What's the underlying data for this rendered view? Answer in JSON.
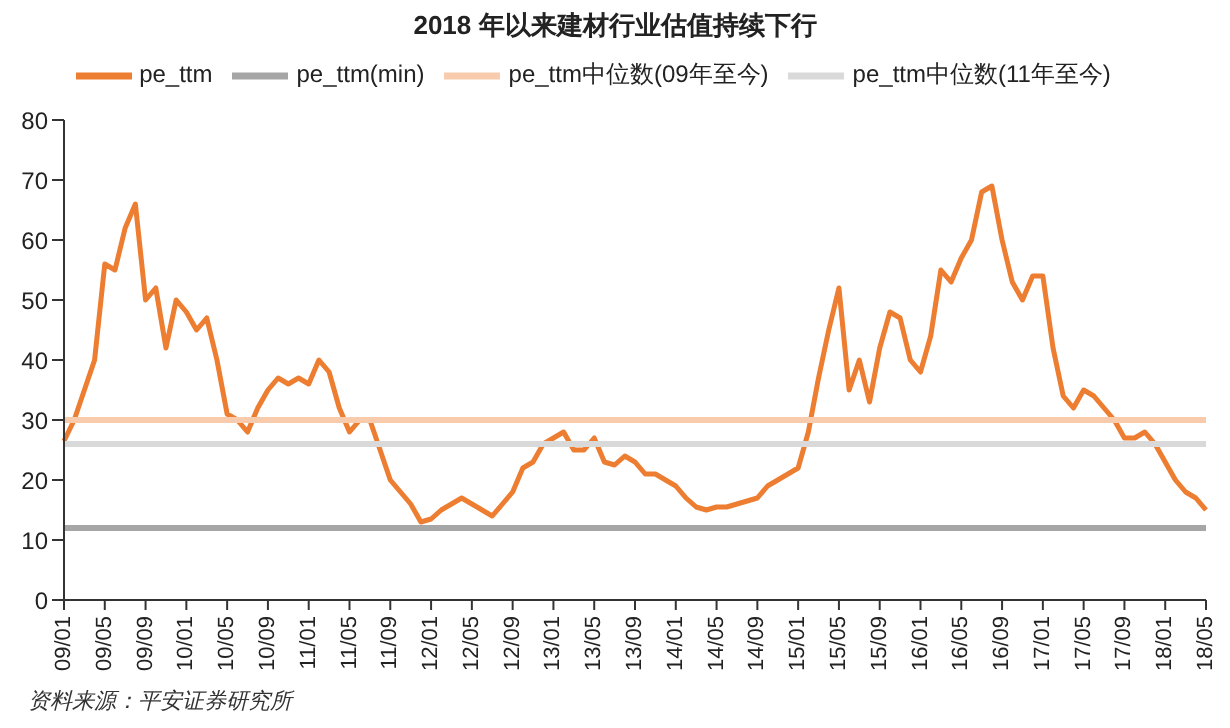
{
  "chart_data": {
    "type": "line",
    "title": "2018 年以来建材行业估值持续下行",
    "annotations": [
      "资料来源：平安证券研究所"
    ],
    "categories": [
      "09/01",
      null,
      null,
      null,
      "09/05",
      null,
      null,
      null,
      "09/09",
      null,
      null,
      null,
      "10/01",
      null,
      null,
      null,
      "10/05",
      null,
      null,
      null,
      "10/09",
      null,
      null,
      null,
      "11/01",
      null,
      null,
      null,
      "11/05",
      null,
      null,
      null,
      "11/09",
      null,
      null,
      null,
      "12/01",
      null,
      null,
      null,
      "12/05",
      null,
      null,
      null,
      "12/09",
      null,
      null,
      null,
      "13/01",
      null,
      null,
      null,
      "13/05",
      null,
      null,
      null,
      "13/09",
      null,
      null,
      null,
      "14/01",
      null,
      null,
      null,
      "14/05",
      null,
      null,
      null,
      "14/09",
      null,
      null,
      null,
      "15/01",
      null,
      null,
      null,
      "15/05",
      null,
      null,
      null,
      "15/09",
      null,
      null,
      null,
      "16/01",
      null,
      null,
      null,
      "16/05",
      null,
      null,
      null,
      "16/09",
      null,
      null,
      null,
      "17/01",
      null,
      null,
      null,
      "17/05",
      null,
      null,
      null,
      "17/09",
      null,
      null,
      null,
      "18/01",
      null,
      null,
      null,
      "18/05"
    ],
    "series": [
      {
        "name": "pe_ttm",
        "color": "#ed7d31",
        "values": [
          26.5,
          30,
          35,
          40,
          56,
          55,
          62,
          66,
          50,
          52,
          42,
          50,
          48,
          45,
          47,
          40,
          31,
          30,
          28,
          32,
          35,
          37,
          36,
          37,
          36,
          40,
          38,
          32,
          28,
          30,
          30,
          25,
          20,
          18,
          16,
          13,
          13.5,
          15,
          16,
          17,
          16,
          15,
          14,
          16,
          18,
          22,
          23,
          26,
          27,
          28,
          25,
          25,
          27,
          23,
          22.5,
          24,
          23,
          21,
          21,
          20,
          19,
          17,
          15.5,
          15,
          15.5,
          15.5,
          16,
          16.5,
          17,
          19,
          20,
          21,
          22,
          28,
          37,
          45,
          52,
          35,
          40,
          33,
          42,
          48,
          47,
          40,
          38,
          44,
          55,
          53,
          57,
          60,
          68,
          69,
          60,
          53,
          50,
          54,
          54,
          42,
          34,
          32,
          35,
          34,
          32,
          30,
          27,
          27,
          28,
          26,
          23,
          20,
          18,
          17,
          15
        ]
      },
      {
        "name": "pe_ttm(min)",
        "color": "#a6a6a6",
        "values": [
          12,
          12,
          12,
          12,
          12,
          12,
          12,
          12,
          12,
          12,
          12,
          12,
          12,
          12,
          12,
          12,
          12,
          12,
          12,
          12,
          12,
          12,
          12,
          12,
          12,
          12,
          12,
          12,
          12,
          12,
          12,
          12,
          12,
          12,
          12,
          12,
          12,
          12,
          12,
          12,
          12,
          12,
          12,
          12,
          12,
          12,
          12,
          12,
          12,
          12,
          12,
          12,
          12,
          12,
          12,
          12,
          12,
          12,
          12,
          12,
          12,
          12,
          12,
          12,
          12,
          12,
          12,
          12,
          12,
          12,
          12,
          12,
          12,
          12,
          12,
          12,
          12,
          12,
          12,
          12,
          12,
          12,
          12,
          12,
          12,
          12,
          12,
          12,
          12,
          12,
          12,
          12,
          12,
          12,
          12,
          12,
          12,
          12,
          12,
          12,
          12,
          12,
          12,
          12,
          12,
          12,
          12,
          12,
          12,
          12,
          12,
          12,
          12
        ]
      },
      {
        "name": "pe_ttm中位数(09年至今)",
        "color": "#f8cbad",
        "values": [
          30,
          30,
          30,
          30,
          30,
          30,
          30,
          30,
          30,
          30,
          30,
          30,
          30,
          30,
          30,
          30,
          30,
          30,
          30,
          30,
          30,
          30,
          30,
          30,
          30,
          30,
          30,
          30,
          30,
          30,
          30,
          30,
          30,
          30,
          30,
          30,
          30,
          30,
          30,
          30,
          30,
          30,
          30,
          30,
          30,
          30,
          30,
          30,
          30,
          30,
          30,
          30,
          30,
          30,
          30,
          30,
          30,
          30,
          30,
          30,
          30,
          30,
          30,
          30,
          30,
          30,
          30,
          30,
          30,
          30,
          30,
          30,
          30,
          30,
          30,
          30,
          30,
          30,
          30,
          30,
          30,
          30,
          30,
          30,
          30,
          30,
          30,
          30,
          30,
          30,
          30,
          30,
          30,
          30,
          30,
          30,
          30,
          30,
          30,
          30,
          30,
          30,
          30,
          30,
          30,
          30,
          30,
          30,
          30,
          30,
          30,
          30,
          30
        ]
      },
      {
        "name": "pe_ttm中位数(11年至今)",
        "color": "#d9d9d9",
        "values": [
          26,
          26,
          26,
          26,
          26,
          26,
          26,
          26,
          26,
          26,
          26,
          26,
          26,
          26,
          26,
          26,
          26,
          26,
          26,
          26,
          26,
          26,
          26,
          26,
          26,
          26,
          26,
          26,
          26,
          26,
          26,
          26,
          26,
          26,
          26,
          26,
          26,
          26,
          26,
          26,
          26,
          26,
          26,
          26,
          26,
          26,
          26,
          26,
          26,
          26,
          26,
          26,
          26,
          26,
          26,
          26,
          26,
          26,
          26,
          26,
          26,
          26,
          26,
          26,
          26,
          26,
          26,
          26,
          26,
          26,
          26,
          26,
          26,
          26,
          26,
          26,
          26,
          26,
          26,
          26,
          26,
          26,
          26,
          26,
          26,
          26,
          26,
          26,
          26,
          26,
          26,
          26,
          26,
          26,
          26,
          26,
          26,
          26,
          26,
          26,
          26,
          26,
          26,
          26,
          26,
          26,
          26,
          26,
          26,
          26,
          26,
          26,
          26
        ]
      }
    ],
    "ylim": [
      0,
      80
    ],
    "yticks": [
      0,
      10,
      20,
      30,
      40,
      50,
      60,
      70,
      80
    ],
    "legend": "top"
  }
}
